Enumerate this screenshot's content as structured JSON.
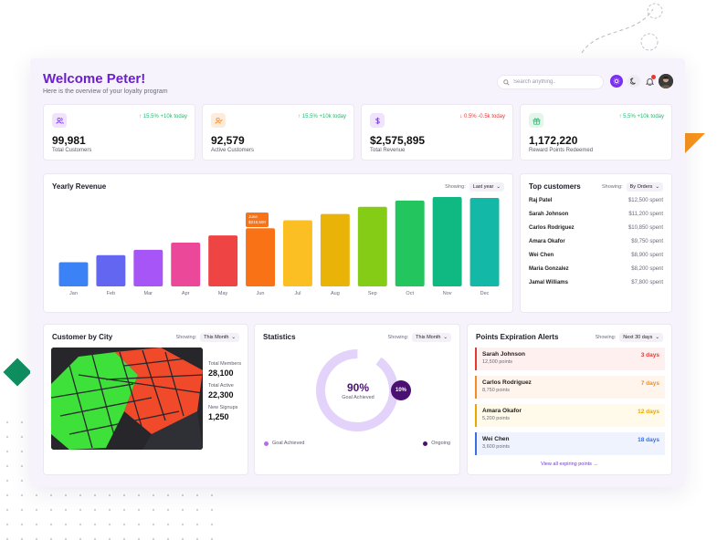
{
  "header": {
    "title": "Welcome Peter!",
    "subtitle": "Here is the overview of your loyalty program",
    "search_placeholder": "Search anything..",
    "notification_count": "3"
  },
  "stats": [
    {
      "icon": "users-icon",
      "value": "99,981",
      "label": "Total Customers",
      "change": "15.5% +10k today",
      "trend": "up",
      "icon_bg": "#efe4fb",
      "icon_color": "#7b2ff2"
    },
    {
      "icon": "user-check-icon",
      "value": "92,579",
      "label": "Active Customers",
      "change": "15.5% +10k today",
      "trend": "up",
      "icon_bg": "#fdebdc",
      "icon_color": "#f28c28"
    },
    {
      "icon": "dollar-icon",
      "value": "$2,575,895",
      "label": "Total Revenue",
      "change": "0.5% -0.5k today",
      "trend": "down",
      "icon_bg": "#efe4fb",
      "icon_color": "#7b2ff2"
    },
    {
      "icon": "gift-icon",
      "value": "1,172,220",
      "label": "Reward Points Redeemed",
      "change": "5.5% +10k today",
      "trend": "up",
      "icon_bg": "#e3f6e9",
      "icon_color": "#2bb673"
    }
  ],
  "revenue": {
    "title": "Yearly Revenue",
    "showing_label": "Showing:",
    "filter": "Last year",
    "tooltip_month": "June",
    "tooltip_value": "$215,500"
  },
  "chart_data": {
    "type": "bar",
    "title": "Yearly Revenue",
    "categories": [
      "Jan",
      "Feb",
      "Mar",
      "Apr",
      "May",
      "Jun",
      "Jul",
      "Aug",
      "Sep",
      "Oct",
      "Nov",
      "Dec"
    ],
    "values": [
      27,
      35,
      41,
      49,
      57,
      65,
      74,
      81,
      89,
      96,
      100,
      99
    ],
    "colors": [
      "#3b82f6",
      "#6366f1",
      "#a855f7",
      "#ec4899",
      "#ef4444",
      "#f97316",
      "#fbbf24",
      "#eab308",
      "#84cc16",
      "#22c55e",
      "#10b981",
      "#14b8a6"
    ],
    "ylim": [
      0,
      100
    ],
    "grid": false
  },
  "top_customers": {
    "title": "Top customers",
    "showing_label": "Showing:",
    "filter": "By Orders",
    "rows": [
      {
        "name": "Raj Patel",
        "amount": "$12,500 spent"
      },
      {
        "name": "Sarah Johnson",
        "amount": "$11,200 spent"
      },
      {
        "name": "Carlos Rodriguez",
        "amount": "$10,850 spent"
      },
      {
        "name": "Amara Okafor",
        "amount": "$9,750 spent"
      },
      {
        "name": "Wei Chen",
        "amount": "$8,900 spent"
      },
      {
        "name": "Maria Gonzalez",
        "amount": "$8,200 spent"
      },
      {
        "name": "Jamal Williams",
        "amount": "$7,800 spent"
      }
    ]
  },
  "city": {
    "title": "Customer by City",
    "showing_label": "Showing:",
    "filter": "This Month",
    "metrics": [
      {
        "label": "Total Members",
        "value": "28,100"
      },
      {
        "label": "Total Active",
        "value": "22,300"
      },
      {
        "label": "New Signups",
        "value": "1,250"
      }
    ]
  },
  "statistics": {
    "title": "Statistics",
    "showing_label": "Showing:",
    "filter": "This Month",
    "achieved_percent": "90%",
    "achieved_label": "Goal Achieved",
    "ongoing_percent": "10%",
    "achieved_fraction": 0.9,
    "legend_achieved": "Goal Achieved",
    "legend_ongoing": "Ongoing",
    "color_achieved": "#e3d2fa",
    "color_ongoing": "#4a1173"
  },
  "alerts": {
    "title": "Points Expiration Alerts",
    "showing_label": "Showing:",
    "filter": "Next 30 days",
    "items": [
      {
        "name": "Sarah Johnson",
        "points": "12,500 points",
        "days": "3 days",
        "color": "#e53935",
        "bg": "#fdf0ef"
      },
      {
        "name": "Carlos Rodriguez",
        "points": "8,750 points",
        "days": "7 days",
        "color": "#f28c28",
        "bg": "#fff5ec"
      },
      {
        "name": "Amara Okafor",
        "points": "5,200 points",
        "days": "12 days",
        "color": "#e6a700",
        "bg": "#fffaea"
      },
      {
        "name": "Wei Chen",
        "points": "3,600 points",
        "days": "18 days",
        "color": "#3b6fe0",
        "bg": "#eef3fd"
      }
    ],
    "view_all": "View all expiring points →"
  }
}
